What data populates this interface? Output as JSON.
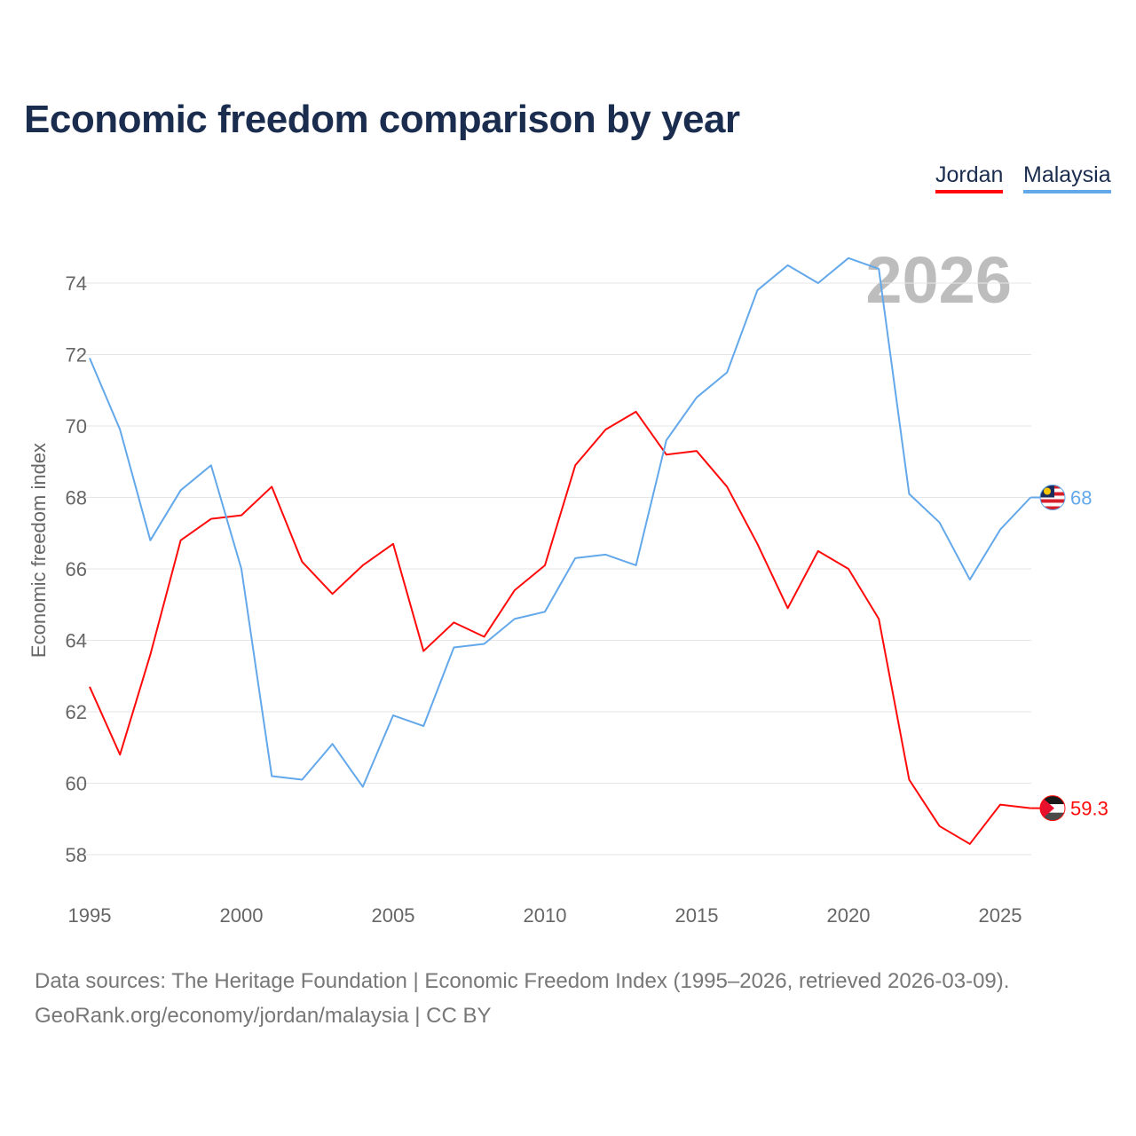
{
  "title": "Economic freedom comparison by year",
  "legend": [
    {
      "name": "Jordan",
      "color": "#ff0a0a"
    },
    {
      "name": "Malaysia",
      "color": "#63a8ea"
    }
  ],
  "footer": {
    "line1": "Data sources: The Heritage Foundation | Economic Freedom Index (1995–2026, retrieved 2026-03-09).",
    "line2": "GeoRank.org/economy/jordan/malaysia | CC BY"
  },
  "chart_data": {
    "type": "line",
    "title": "Economic freedom comparison by year",
    "ylabel": "Economic freedom index",
    "xlabel": "",
    "year_watermark": "2026",
    "xlim": [
      1995,
      2026
    ],
    "ylim": [
      57,
      75.5
    ],
    "xticks": [
      1995,
      2000,
      2005,
      2010,
      2015,
      2020,
      2025
    ],
    "yticks": [
      58,
      60,
      62,
      64,
      66,
      68,
      70,
      72,
      74
    ],
    "grid": true,
    "legend_position": "top-right",
    "x": [
      1995,
      1996,
      1997,
      1998,
      1999,
      2000,
      2001,
      2002,
      2003,
      2004,
      2005,
      2006,
      2007,
      2008,
      2009,
      2010,
      2011,
      2012,
      2013,
      2014,
      2015,
      2016,
      2017,
      2018,
      2019,
      2020,
      2021,
      2022,
      2023,
      2024,
      2025,
      2026
    ],
    "series": [
      {
        "name": "Jordan",
        "color": "#ff0a0a",
        "end_label": "59.3",
        "flag": "jordan-flag",
        "values": [
          62.7,
          60.8,
          63.6,
          66.8,
          67.4,
          67.5,
          68.3,
          66.2,
          65.3,
          66.1,
          66.7,
          63.7,
          64.5,
          64.1,
          65.4,
          66.1,
          68.9,
          69.9,
          70.4,
          69.2,
          69.3,
          68.3,
          66.7,
          64.9,
          66.5,
          66.0,
          64.6,
          60.1,
          58.8,
          58.3,
          59.4,
          59.3
        ]
      },
      {
        "name": "Malaysia",
        "color": "#63a8ea",
        "end_label": "68",
        "flag": "malaysia-flag",
        "values": [
          71.9,
          69.9,
          66.8,
          68.2,
          68.9,
          66.0,
          60.2,
          60.1,
          61.1,
          59.9,
          61.9,
          61.6,
          63.8,
          63.9,
          64.6,
          64.8,
          66.3,
          66.4,
          66.1,
          69.6,
          70.8,
          71.5,
          73.8,
          74.5,
          74.0,
          74.7,
          74.4,
          68.1,
          67.3,
          65.7,
          67.1,
          68.0
        ]
      }
    ]
  }
}
